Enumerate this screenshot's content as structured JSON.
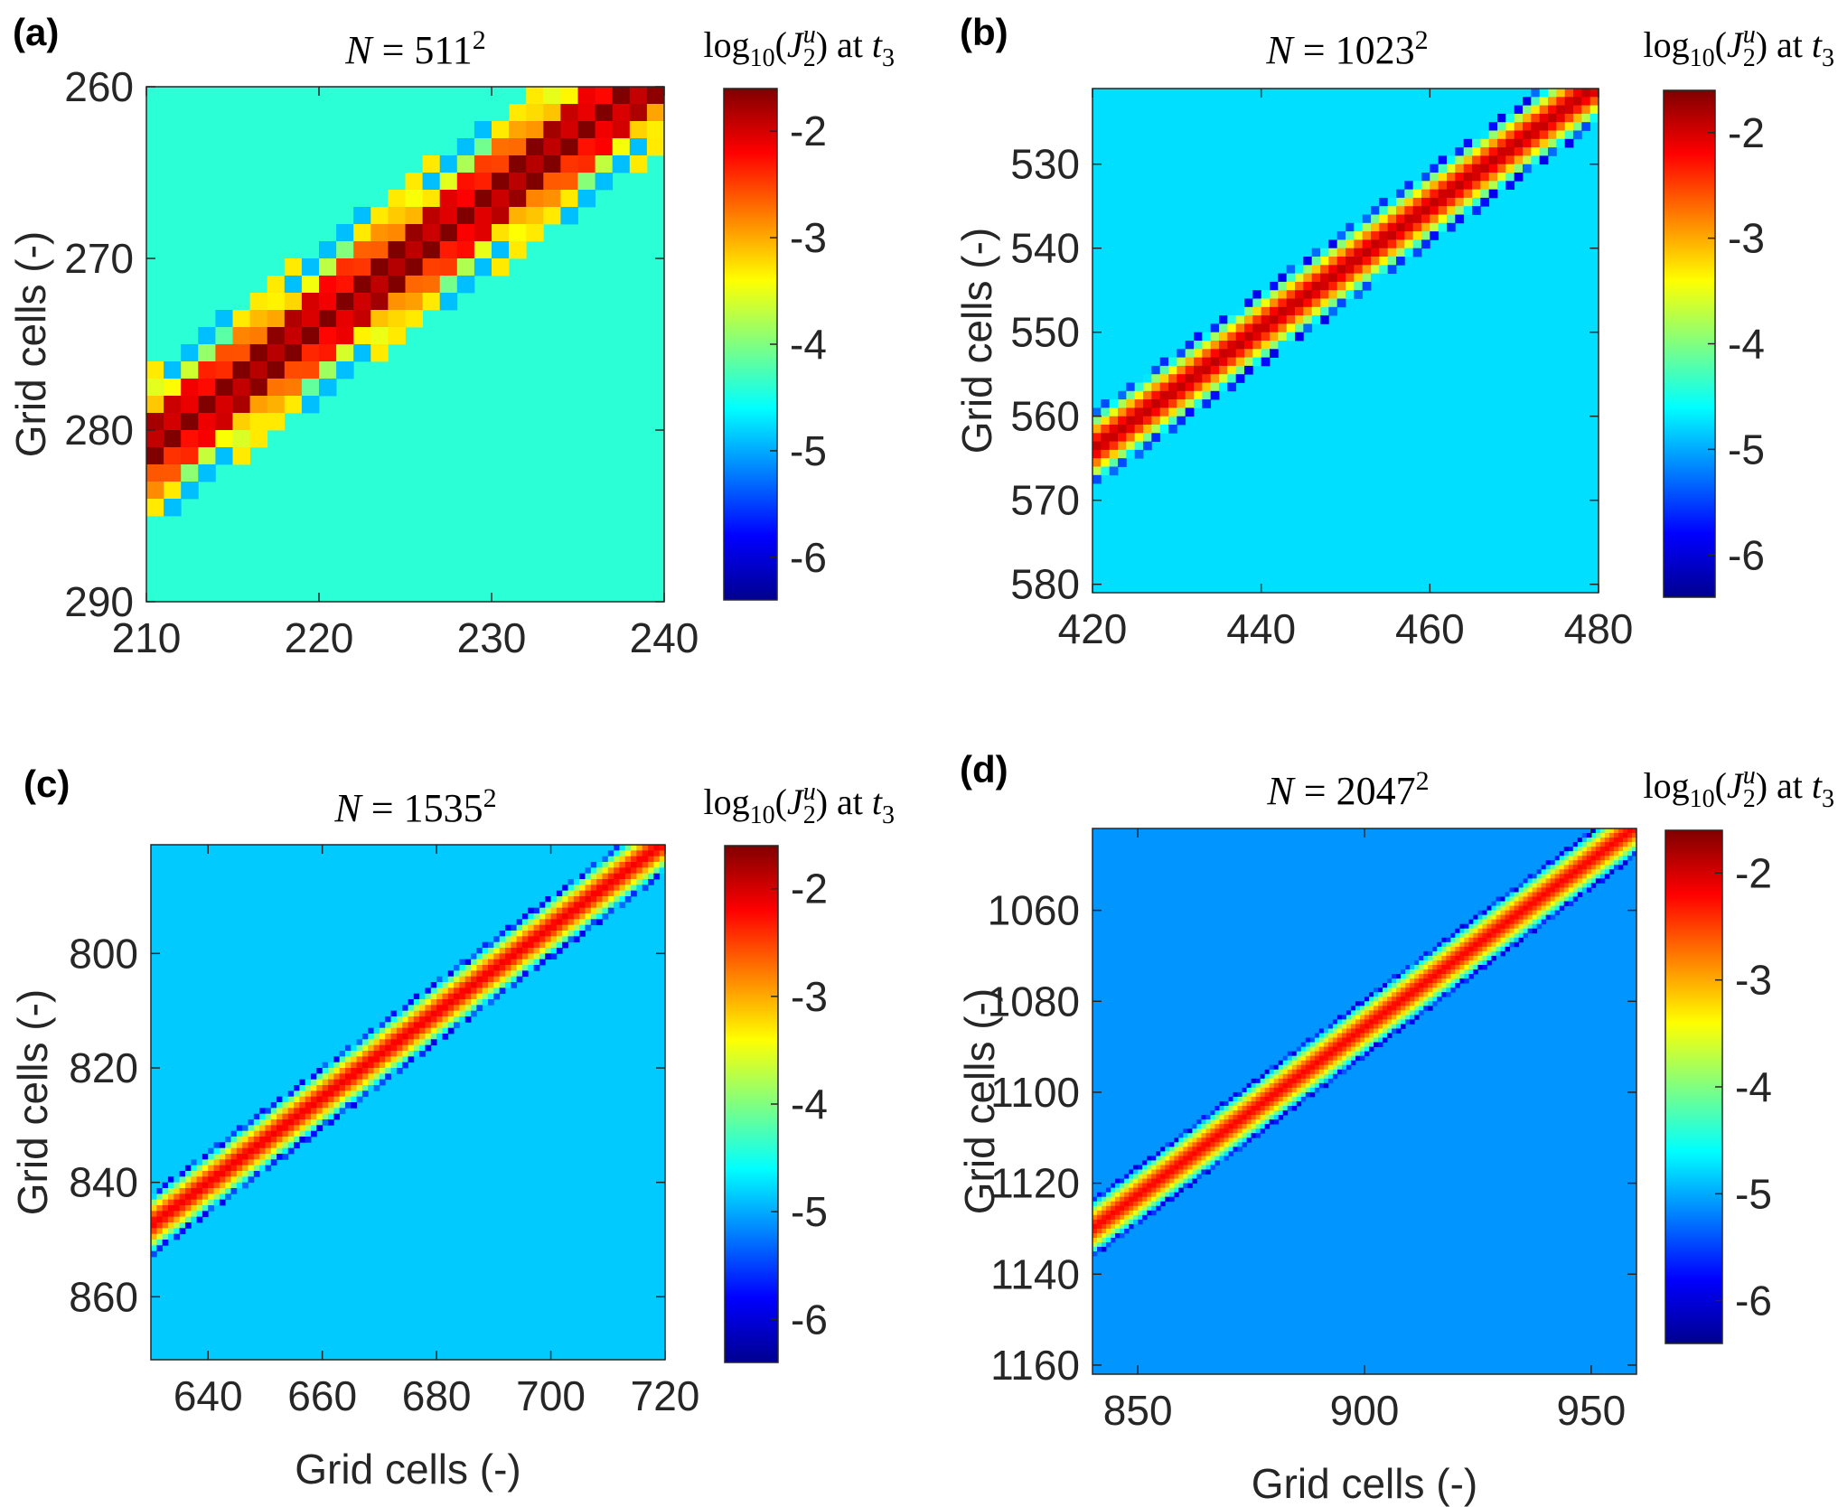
{
  "colorbar_range": [
    -6.4,
    -1.6
  ],
  "colormap": [
    "#00008f",
    "#0000ff",
    "#0080ff",
    "#00ffff",
    "#80ff80",
    "#ffff00",
    "#ff8000",
    "#ff0000",
    "#800000"
  ],
  "chart_data": [
    {
      "panel": "(a)",
      "type": "heatmap",
      "title": "N = 511²",
      "title_parts": {
        "lhs": "N",
        "eq": "=",
        "base": "511",
        "exp": "2"
      },
      "xlabel": "",
      "ylabel": "Grid cells (-)",
      "xlim": [
        210,
        240
      ],
      "ylim": [
        260,
        290
      ],
      "y_reversed": true,
      "xticks": [
        210,
        220,
        230,
        240
      ],
      "yticks": [
        260,
        270,
        280,
        290
      ],
      "colorbar_label": "log10(J2u) at t3",
      "colorbar_ticks": [
        -2,
        -3,
        -4,
        -5,
        -6
      ],
      "background_value": -4.4,
      "band": {
        "y_at_xmin": 281.2,
        "y_at_xmax": 259.0,
        "halfwidth_cells": 4,
        "peak_value": -1.6,
        "edge_value": -5.3
      },
      "cell_size": 1,
      "checker": true
    },
    {
      "panel": "(b)",
      "type": "heatmap",
      "title": "N = 1023²",
      "title_parts": {
        "lhs": "N",
        "eq": "=",
        "base": "1023",
        "exp": "2"
      },
      "xlabel": "",
      "ylabel": "Grid cells (-)",
      "xlim": [
        420,
        480
      ],
      "ylim": [
        521,
        581
      ],
      "y_reversed": true,
      "xticks": [
        420,
        440,
        460,
        480
      ],
      "yticks": [
        530,
        540,
        550,
        560,
        570,
        580
      ],
      "colorbar_label": "log10(J2u) at t3",
      "colorbar_ticks": [
        -2,
        -3,
        -4,
        -5,
        -6
      ],
      "background_value": -4.75,
      "band": {
        "y_at_xmin": 564.0,
        "y_at_xmax": 520.5,
        "halfwidth_cells": 4,
        "peak_value": -1.9,
        "edge_value": -5.6
      },
      "cell_size": 1,
      "checker": false
    },
    {
      "panel": "(c)",
      "type": "heatmap",
      "title": "N = 1535²",
      "title_parts": {
        "lhs": "N",
        "eq": "=",
        "base": "1535",
        "exp": "2"
      },
      "xlabel": "Grid cells (-)",
      "ylabel": "Grid cells (-)",
      "xlim": [
        630,
        720
      ],
      "ylim": [
        781,
        871
      ],
      "y_reversed": true,
      "xticks": [
        640,
        660,
        680,
        700,
        720
      ],
      "yticks": [
        800,
        820,
        840,
        860
      ],
      "colorbar_label": "log10(J2u) at t3",
      "colorbar_ticks": [
        -2,
        -3,
        -4,
        -5,
        -6
      ],
      "background_value": -4.85,
      "band": {
        "y_at_xmin": 847.5,
        "y_at_xmax": 780.5,
        "halfwidth_cells": 5,
        "peak_value": -2.15,
        "edge_value": -5.6
      },
      "cell_size": 1,
      "checker": false
    },
    {
      "panel": "(d)",
      "type": "heatmap",
      "title": "N = 2047²",
      "title_parts": {
        "lhs": "N",
        "eq": "=",
        "base": "2047",
        "exp": "2"
      },
      "xlabel": "Grid cells (-)",
      "ylabel": "Grid cells (-)",
      "xlim": [
        840,
        960
      ],
      "ylim": [
        1042,
        1162
      ],
      "y_reversed": true,
      "xticks": [
        850,
        900,
        950
      ],
      "yticks": [
        1060,
        1080,
        1100,
        1120,
        1140,
        1160
      ],
      "colorbar_label": "log10(J2u) at t3",
      "colorbar_ticks": [
        -2,
        -3,
        -4,
        -5,
        -6
      ],
      "background_value": -5.1,
      "band": {
        "y_at_xmin": 1130.0,
        "y_at_xmax": 1041.5,
        "halfwidth_cells": 6,
        "peak_value": -2.2,
        "edge_value": -5.7
      },
      "cell_size": 1,
      "checker": false
    }
  ]
}
